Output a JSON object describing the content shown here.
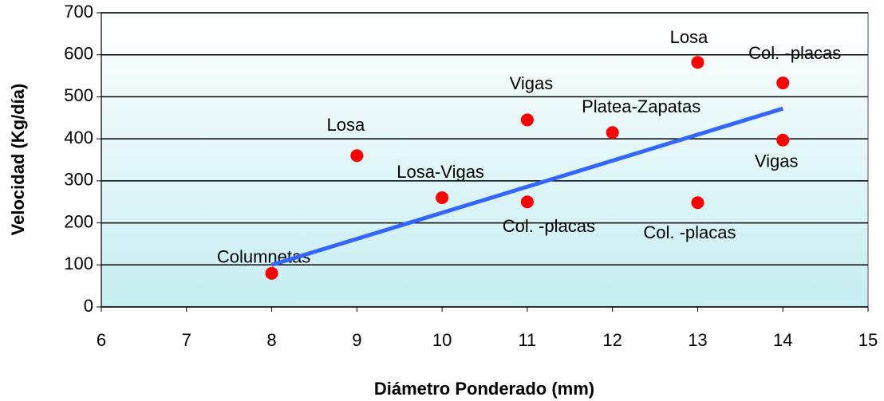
{
  "chart_data": {
    "type": "scatter",
    "xlabel": "Diámetro Ponderado (mm)",
    "ylabel": "Velocidad (Kg/día)",
    "x": [
      8,
      9,
      10,
      11,
      11,
      12,
      13,
      13,
      14,
      14
    ],
    "values": [
      80,
      360,
      260,
      445,
      250,
      415,
      582,
      248,
      533,
      397
    ],
    "point_labels": [
      "Columnetas",
      "Losa",
      "Losa-Vigas",
      "Vigas",
      "Col. -placas",
      "Platea-Zapatas",
      "Losa",
      "Col. -placas",
      "Col. -placas",
      "Vigas"
    ],
    "color": "#ff0000",
    "trendline": {
      "x": [
        8,
        14
      ],
      "values": [
        100,
        472
      ],
      "color": "#3366ff"
    },
    "xlim": [
      6,
      15
    ],
    "xticks": [
      6,
      7,
      8,
      9,
      10,
      11,
      12,
      13,
      14,
      15
    ],
    "ylim": [
      0,
      700
    ],
    "yticks": [
      0,
      100,
      200,
      300,
      400,
      500,
      600,
      700
    ],
    "grid": true
  }
}
